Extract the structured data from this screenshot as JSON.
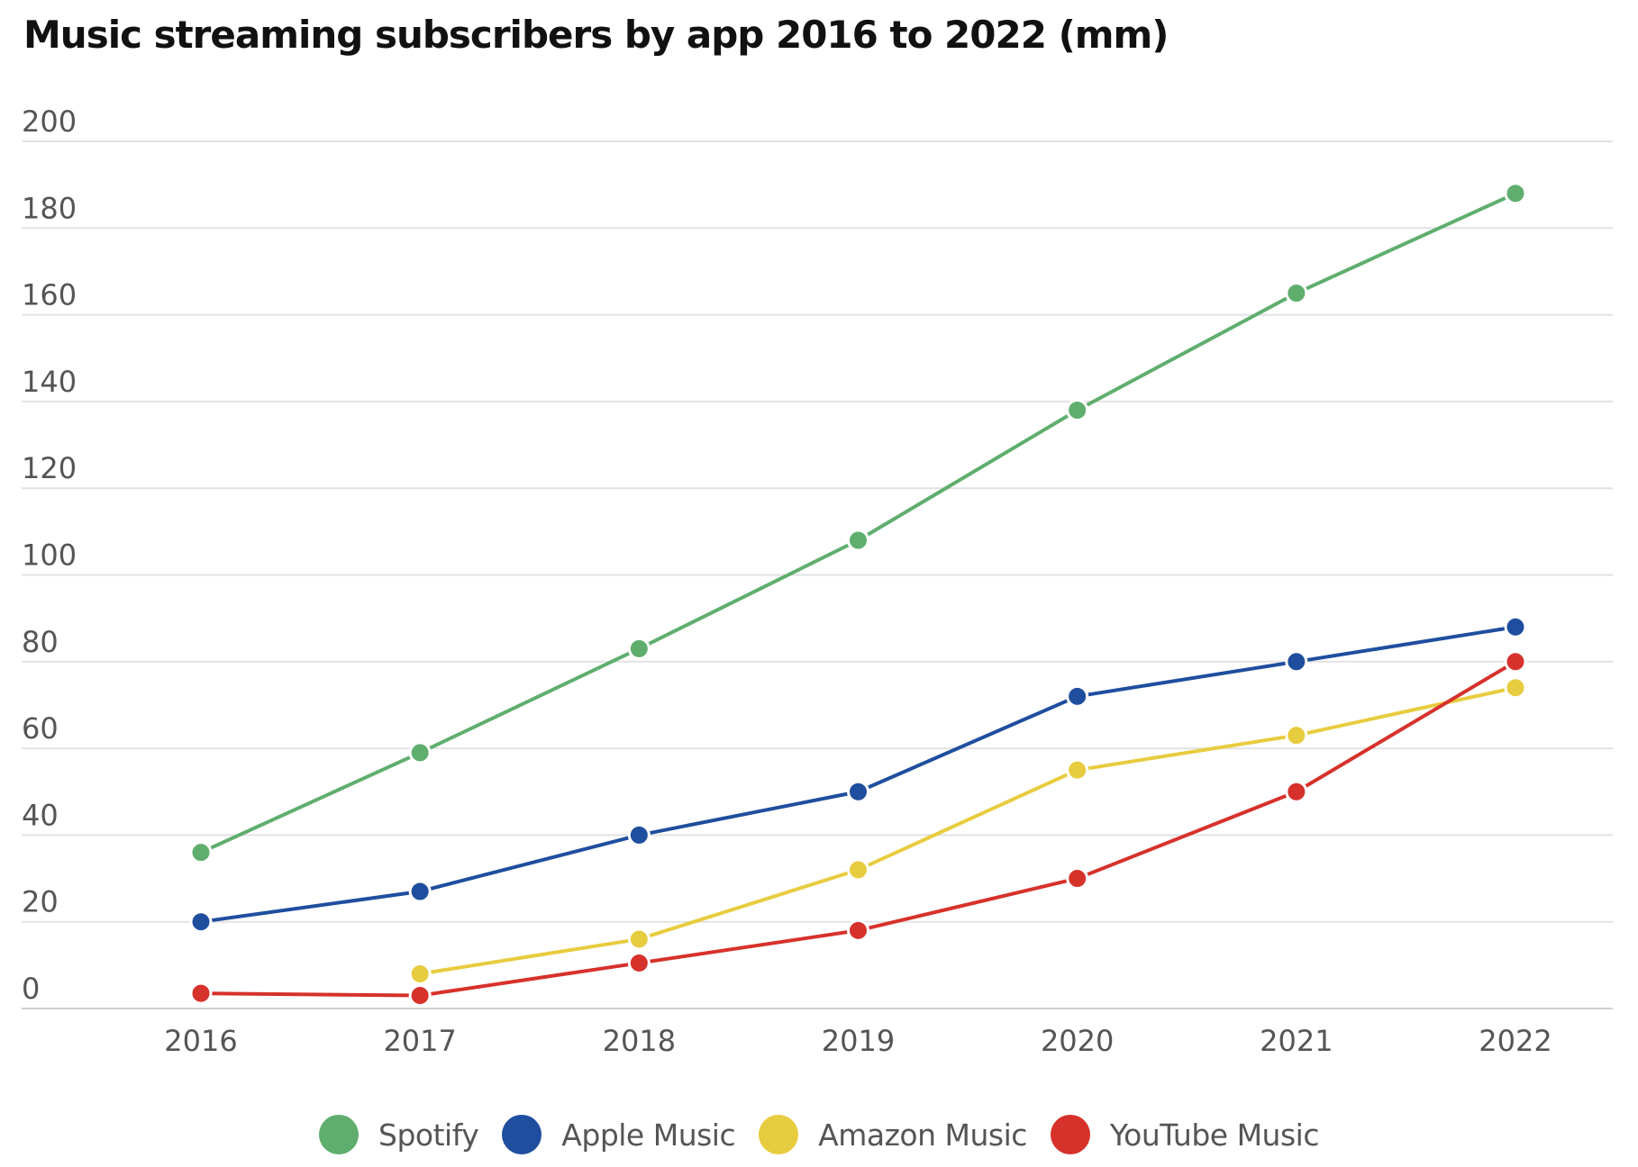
{
  "chart_data": {
    "type": "line",
    "title": "Music streaming subscribers by app 2016 to 2022 (mm)",
    "xlabel": "",
    "ylabel": "",
    "categories": [
      "2016",
      "2017",
      "2018",
      "2019",
      "2020",
      "2021",
      "2022"
    ],
    "ylim": [
      0,
      200
    ],
    "yticks": [
      0,
      20,
      40,
      60,
      80,
      100,
      120,
      140,
      160,
      180,
      200
    ],
    "grid": true,
    "legend_position": "bottom",
    "series": [
      {
        "name": "Spotify",
        "color": "#5fae6e",
        "values": [
          36,
          59,
          83,
          108,
          138,
          165,
          188
        ]
      },
      {
        "name": "Apple Music",
        "color": "#1f4e9e",
        "values": [
          20,
          27,
          40,
          50,
          72,
          80,
          88
        ]
      },
      {
        "name": "Amazon Music",
        "color": "#e8cc3f",
        "values": [
          null,
          8,
          16,
          32,
          55,
          63,
          74
        ]
      },
      {
        "name": "YouTube Music",
        "color": "#d7312b",
        "values": [
          3.5,
          3,
          10.5,
          18,
          30,
          50,
          80
        ]
      }
    ]
  }
}
